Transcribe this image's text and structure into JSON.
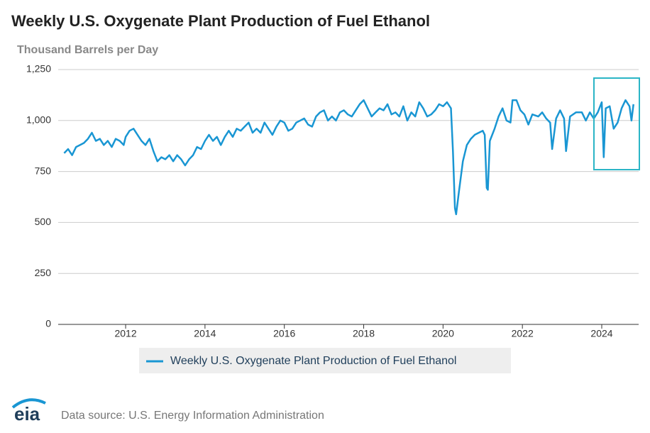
{
  "chart_data": {
    "type": "line",
    "title": "Weekly U.S. Oxygenate Plant Production of Fuel Ethanol",
    "subtitle": "Thousand Barrels per Day",
    "source": "Data source: U.S. Energy Information Administration",
    "logo": "eia",
    "xlim": [
      2010.3,
      2024.93
    ],
    "xticks": [
      2012,
      2014,
      2016,
      2018,
      2020,
      2022,
      2024
    ],
    "ylim": [
      0,
      1250
    ],
    "yticks": [
      0,
      250,
      500,
      750,
      {
        "value": 1000,
        "label": "1,000"
      },
      {
        "value": 1250,
        "label": "1,250"
      }
    ],
    "grid": true,
    "x": [
      2010.45,
      2010.55,
      2010.65,
      2010.75,
      2010.85,
      2010.95,
      2011.05,
      2011.15,
      2011.25,
      2011.35,
      2011.45,
      2011.55,
      2011.65,
      2011.75,
      2011.85,
      2011.95,
      2012.0,
      2012.1,
      2012.2,
      2012.3,
      2012.4,
      2012.5,
      2012.6,
      2012.7,
      2012.8,
      2012.9,
      2013.0,
      2013.1,
      2013.2,
      2013.3,
      2013.4,
      2013.5,
      2013.6,
      2013.7,
      2013.8,
      2013.9,
      2014.0,
      2014.1,
      2014.2,
      2014.3,
      2014.4,
      2014.5,
      2014.6,
      2014.7,
      2014.8,
      2014.9,
      2015.0,
      2015.1,
      2015.2,
      2015.3,
      2015.4,
      2015.5,
      2015.6,
      2015.7,
      2015.8,
      2015.9,
      2016.0,
      2016.1,
      2016.2,
      2016.3,
      2016.4,
      2016.5,
      2016.6,
      2016.7,
      2016.8,
      2016.9,
      2017.0,
      2017.1,
      2017.2,
      2017.3,
      2017.4,
      2017.5,
      2017.6,
      2017.7,
      2017.8,
      2017.9,
      2018.0,
      2018.1,
      2018.2,
      2018.3,
      2018.4,
      2018.5,
      2018.6,
      2018.7,
      2018.8,
      2018.9,
      2019.0,
      2019.1,
      2019.2,
      2019.3,
      2019.4,
      2019.5,
      2019.6,
      2019.7,
      2019.8,
      2019.9,
      2020.0,
      2020.1,
      2020.2,
      2020.25,
      2020.3,
      2020.33,
      2020.4,
      2020.5,
      2020.6,
      2020.7,
      2020.8,
      2020.9,
      2021.0,
      2021.05,
      2021.1,
      2021.13,
      2021.18,
      2021.3,
      2021.4,
      2021.5,
      2021.6,
      2021.7,
      2021.75,
      2021.85,
      2021.95,
      2022.05,
      2022.15,
      2022.25,
      2022.4,
      2022.5,
      2022.6,
      2022.7,
      2022.75,
      2022.85,
      2022.95,
      2023.05,
      2023.1,
      2023.2,
      2023.35,
      2023.5,
      2023.6,
      2023.7,
      2023.8,
      2023.9,
      2024.0,
      2024.05,
      2024.1,
      2024.2,
      2024.3,
      2024.4,
      2024.5,
      2024.6,
      2024.7,
      2024.75,
      2024.8
    ],
    "series": [
      {
        "name": "Weekly U.S. Oxygenate Plant Production of Fuel Ethanol",
        "color": "#1996d3",
        "values": [
          840,
          860,
          830,
          870,
          880,
          890,
          910,
          940,
          900,
          910,
          880,
          900,
          870,
          910,
          900,
          880,
          920,
          950,
          960,
          930,
          900,
          880,
          910,
          850,
          800,
          820,
          810,
          830,
          800,
          830,
          810,
          780,
          810,
          830,
          870,
          860,
          900,
          930,
          900,
          920,
          880,
          920,
          950,
          920,
          960,
          950,
          970,
          990,
          940,
          960,
          940,
          990,
          960,
          930,
          970,
          1000,
          990,
          950,
          960,
          990,
          1000,
          1010,
          980,
          970,
          1020,
          1040,
          1050,
          1000,
          1020,
          1000,
          1040,
          1050,
          1030,
          1020,
          1050,
          1080,
          1100,
          1060,
          1020,
          1040,
          1060,
          1050,
          1080,
          1030,
          1040,
          1020,
          1070,
          1000,
          1040,
          1020,
          1090,
          1060,
          1020,
          1030,
          1050,
          1080,
          1070,
          1090,
          1060,
          850,
          570,
          540,
          650,
          800,
          880,
          910,
          930,
          940,
          950,
          930,
          670,
          660,
          900,
          960,
          1020,
          1060,
          1000,
          990,
          1100,
          1100,
          1050,
          1030,
          980,
          1030,
          1020,
          1040,
          1010,
          990,
          860,
          1010,
          1050,
          1010,
          850,
          1020,
          1040,
          1040,
          1000,
          1040,
          1010,
          1040,
          1090,
          820,
          1060,
          1070,
          960,
          990,
          1060,
          1100,
          1070,
          1000,
          1080
        ]
      }
    ]
  }
}
